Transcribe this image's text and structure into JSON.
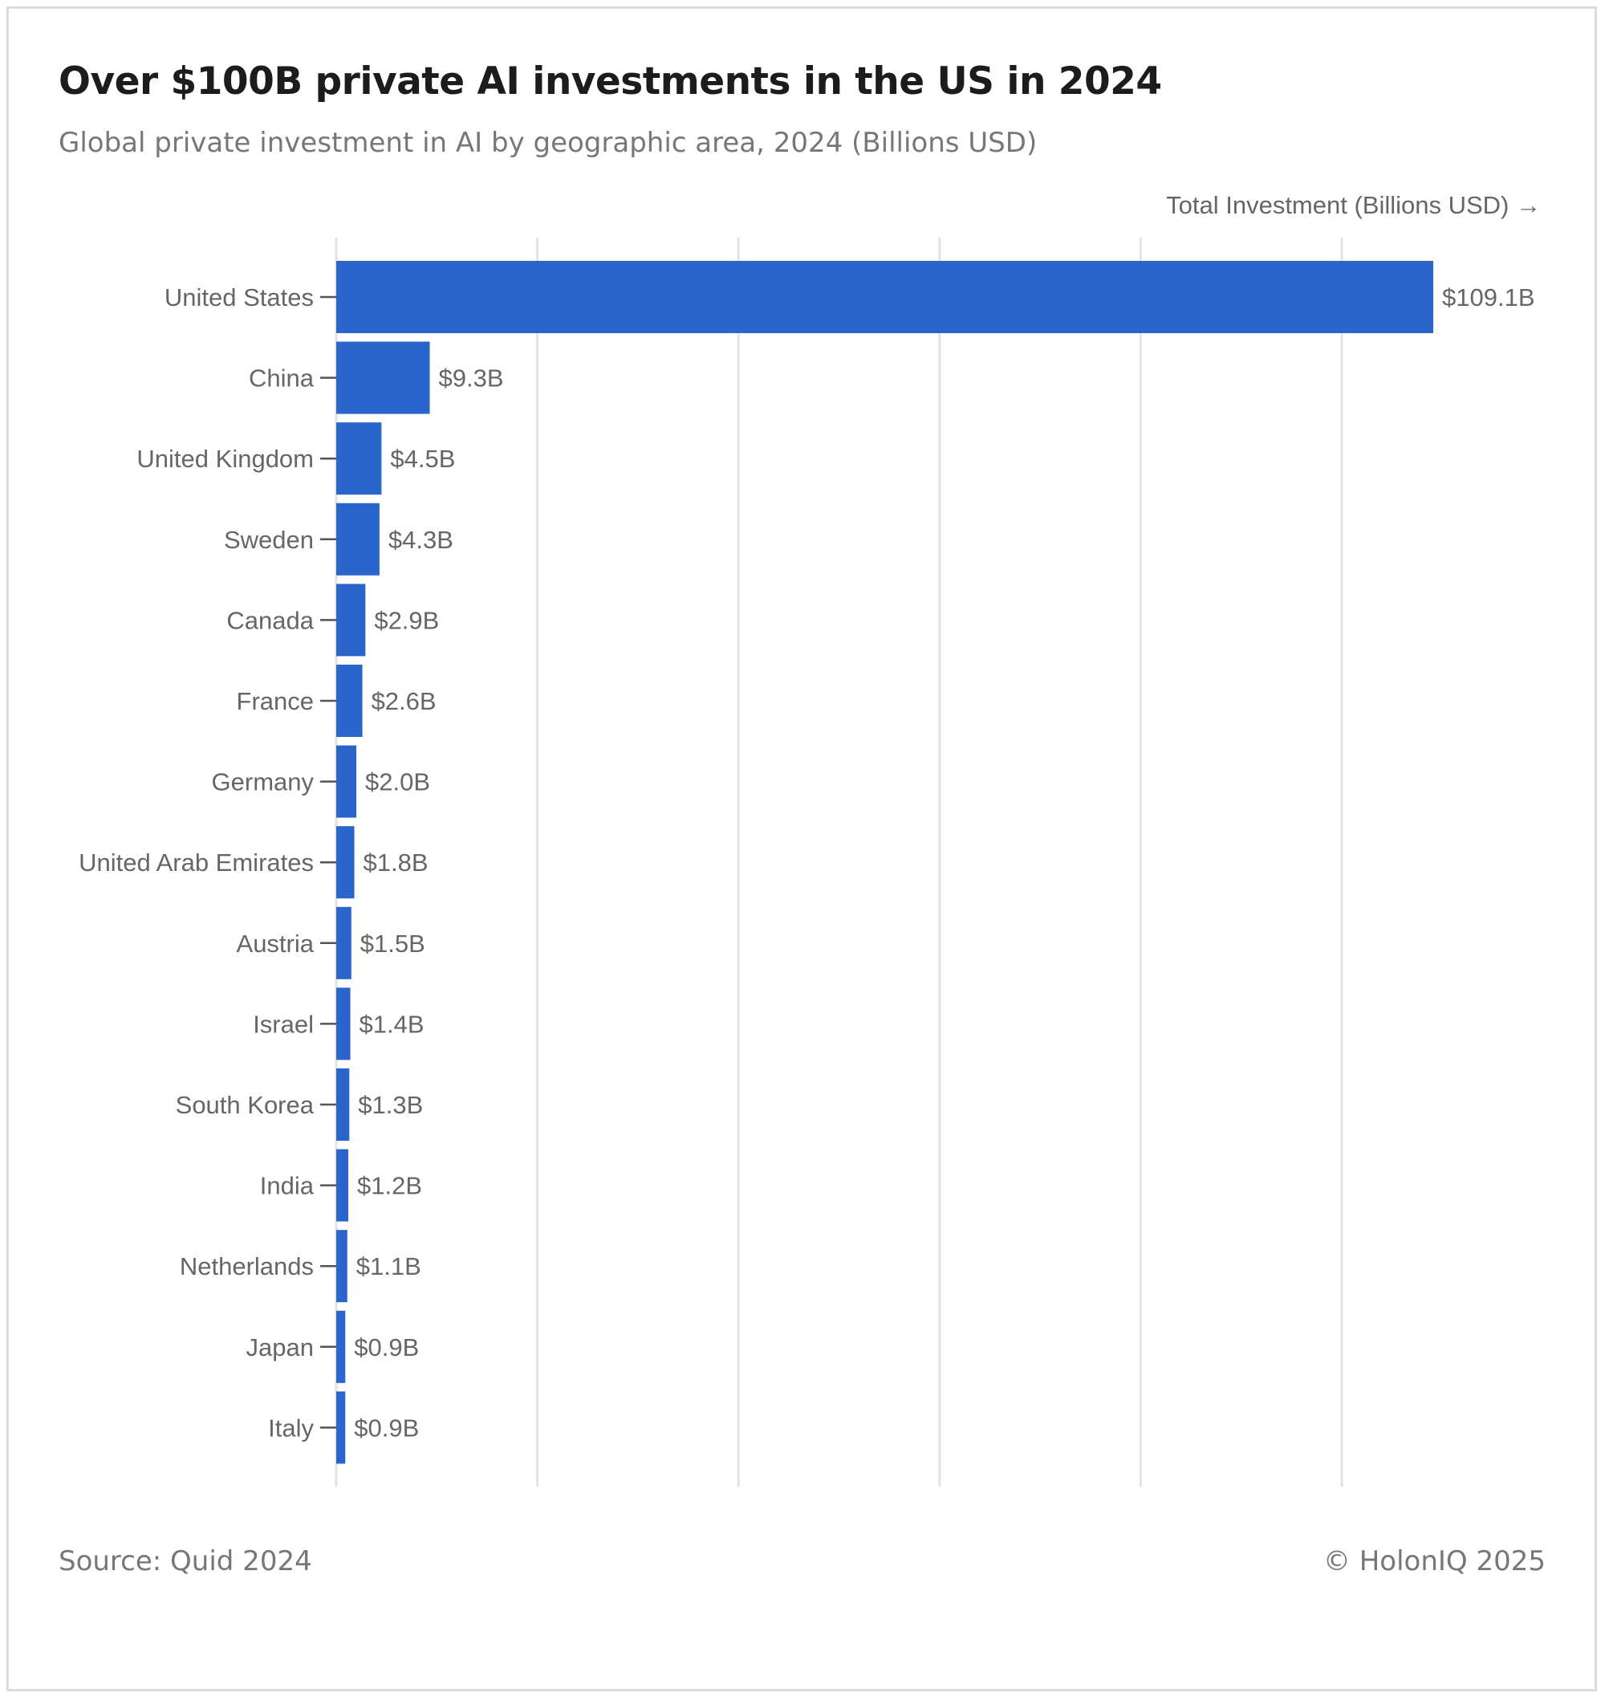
{
  "header": {
    "title": "Over $100B private AI investments in the US in 2024",
    "subtitle": "Global private investment in AI by geographic area, 2024 (Billions USD)"
  },
  "footer": {
    "source": "Source: Quid 2024",
    "copyright": "© HolonIQ 2025"
  },
  "chart_data": {
    "type": "bar",
    "orientation": "horizontal",
    "xlabel": "Total Investment (Billions USD) →",
    "ylabel": "",
    "xlim": [
      0,
      120
    ],
    "grid": true,
    "bar_color": "#2a65cc",
    "categories": [
      "United States",
      "China",
      "United Kingdom",
      "Sweden",
      "Canada",
      "France",
      "Germany",
      "United Arab Emirates",
      "Austria",
      "Israel",
      "South Korea",
      "India",
      "Netherlands",
      "Japan",
      "Italy"
    ],
    "values": [
      109.1,
      9.3,
      4.5,
      4.3,
      2.9,
      2.6,
      2.0,
      1.8,
      1.5,
      1.4,
      1.3,
      1.2,
      1.1,
      0.9,
      0.9
    ],
    "data_labels": [
      "$109.1B",
      "$9.3B",
      "$4.5B",
      "$4.3B",
      "$2.9B",
      "$2.6B",
      "$2.0B",
      "$1.8B",
      "$1.5B",
      "$1.4B",
      "$1.3B",
      "$1.2B",
      "$1.1B",
      "$0.9B",
      "$0.9B"
    ]
  }
}
